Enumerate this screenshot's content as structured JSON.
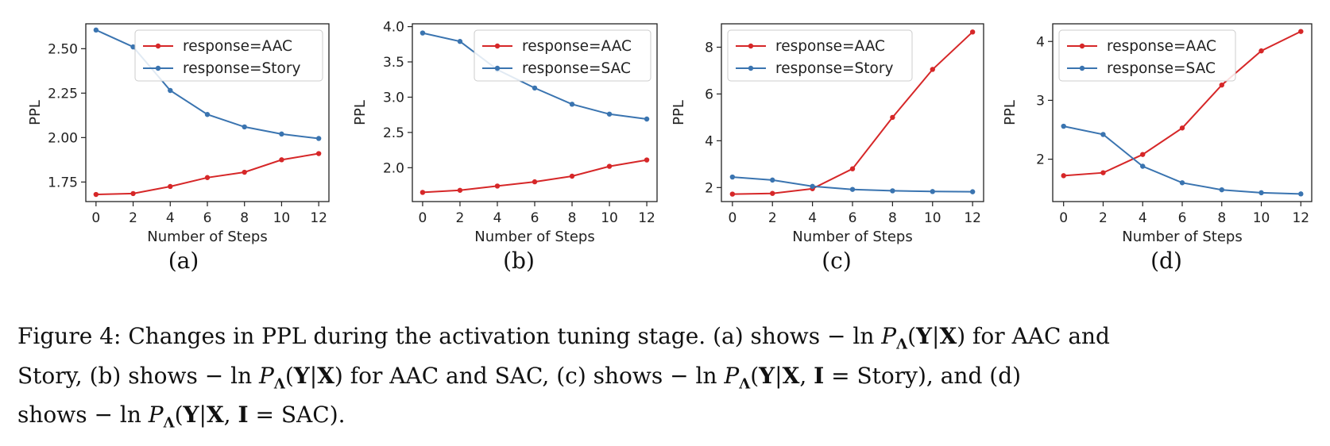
{
  "colors": {
    "red": "#d62728",
    "blue": "#3a74b0"
  },
  "chart_data": [
    {
      "type": "line",
      "panel_label": "(a)",
      "xlabel": "Number of Steps",
      "ylabel": "PPL",
      "x": [
        0,
        2,
        4,
        6,
        8,
        10,
        12
      ],
      "xticks": [
        "0",
        "2",
        "4",
        "6",
        "8",
        "10",
        "12"
      ],
      "ylim": [
        1.64,
        2.64
      ],
      "yticks": [
        "1.75",
        "2.00",
        "2.25",
        "2.50"
      ],
      "ytick_values": [
        1.75,
        2.0,
        2.25,
        2.5
      ],
      "legend": "upper right",
      "series": [
        {
          "name": "response=AAC",
          "color": "red",
          "values": [
            1.68,
            1.685,
            1.725,
            1.775,
            1.805,
            1.875,
            1.91
          ]
        },
        {
          "name": "response=Story",
          "color": "blue",
          "values": [
            2.605,
            2.51,
            2.265,
            2.13,
            2.06,
            2.02,
            1.995
          ]
        }
      ]
    },
    {
      "type": "line",
      "panel_label": "(b)",
      "xlabel": "Number of Steps",
      "ylabel": "PPL",
      "x": [
        0,
        2,
        4,
        6,
        8,
        10,
        12
      ],
      "xticks": [
        "0",
        "2",
        "4",
        "6",
        "8",
        "10",
        "12"
      ],
      "ylim": [
        1.52,
        4.04
      ],
      "yticks": [
        "2.0",
        "2.5",
        "3.0",
        "3.5",
        "4.0"
      ],
      "ytick_values": [
        2.0,
        2.5,
        3.0,
        3.5,
        4.0
      ],
      "legend": "upper right",
      "series": [
        {
          "name": "response=AAC",
          "color": "red",
          "values": [
            1.65,
            1.68,
            1.74,
            1.8,
            1.88,
            2.02,
            2.11
          ]
        },
        {
          "name": "response=SAC",
          "color": "blue",
          "values": [
            3.91,
            3.79,
            3.39,
            3.13,
            2.9,
            2.76,
            2.69
          ]
        }
      ]
    },
    {
      "type": "line",
      "panel_label": "(c)",
      "xlabel": "Number of Steps",
      "ylabel": "PPL",
      "x": [
        0,
        2,
        4,
        6,
        8,
        10,
        12
      ],
      "xticks": [
        "0",
        "2",
        "4",
        "6",
        "8",
        "10",
        "12"
      ],
      "ylim": [
        1.4,
        9.0
      ],
      "yticks": [
        "2",
        "4",
        "6",
        "8"
      ],
      "ytick_values": [
        2,
        4,
        6,
        8
      ],
      "legend": "upper left",
      "series": [
        {
          "name": "response=AAC",
          "color": "red",
          "values": [
            1.72,
            1.75,
            1.95,
            2.8,
            5.0,
            7.05,
            8.65
          ]
        },
        {
          "name": "response=Story",
          "color": "blue",
          "values": [
            2.45,
            2.32,
            2.05,
            1.92,
            1.86,
            1.83,
            1.82
          ]
        }
      ]
    },
    {
      "type": "line",
      "panel_label": "(d)",
      "xlabel": "Number of Steps",
      "ylabel": "PPL",
      "x": [
        0,
        2,
        4,
        6,
        8,
        10,
        12
      ],
      "xticks": [
        "0",
        "2",
        "4",
        "6",
        "8",
        "10",
        "12"
      ],
      "ylim": [
        1.28,
        4.3
      ],
      "yticks": [
        "2",
        "3",
        "4"
      ],
      "ytick_values": [
        2,
        3,
        4
      ],
      "legend": "upper left",
      "series": [
        {
          "name": "response=AAC",
          "color": "red",
          "values": [
            1.72,
            1.77,
            2.08,
            2.53,
            3.26,
            3.84,
            4.17
          ]
        },
        {
          "name": "response=SAC",
          "color": "blue",
          "values": [
            2.56,
            2.42,
            1.88,
            1.6,
            1.48,
            1.43,
            1.41
          ]
        }
      ]
    }
  ],
  "caption": {
    "prefix": "Figure 4: Changes in PPL during the activation tuning stage. (a) shows ",
    "neg_ln": "− ln ",
    "P": "P",
    "Lambda": "Λ",
    "YgX_open": "(",
    "Y": "Y",
    "bar": "|",
    "X": "X",
    "YgX_close": ")",
    "a_suffix": " for AAC and",
    "line2_start": "Story, (b) shows ",
    "b_suffix": " for AAC and SAC, (c) shows ",
    "comma_I": ", ",
    "I": "I",
    "eq": " = ",
    "story": "Story",
    "c_suffix": "), and (d)",
    "line3_start": "shows ",
    "sac": "SAC",
    "end": ")."
  }
}
